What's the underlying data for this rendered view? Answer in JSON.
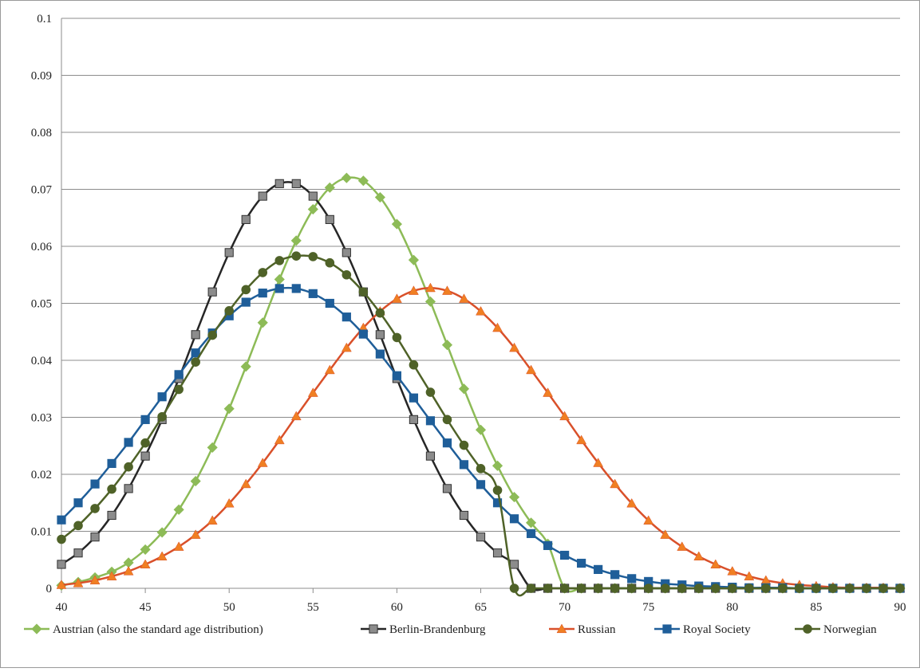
{
  "chart_data": {
    "type": "line",
    "title": "",
    "xlabel": "",
    "ylabel": "",
    "xlim": [
      40,
      90
    ],
    "ylim": [
      0,
      0.1
    ],
    "xticks": [
      "40",
      "45",
      "50",
      "55",
      "60",
      "65",
      "70",
      "75",
      "80",
      "85",
      "90"
    ],
    "yticks": [
      "0",
      "0.01",
      "0.02",
      "0.03",
      "0.04",
      "0.05",
      "0.06",
      "0.07",
      "0.08",
      "0.09",
      "0.1"
    ],
    "grid": "horizontal",
    "legend_position": "bottom",
    "x": [
      40,
      41,
      42,
      43,
      44,
      45,
      46,
      47,
      48,
      49,
      50,
      51,
      52,
      53,
      54,
      55,
      56,
      57,
      58,
      59,
      60,
      61,
      62,
      63,
      64,
      65,
      66,
      67,
      68,
      69,
      70,
      71,
      72,
      73,
      74,
      75,
      76,
      77,
      78,
      79,
      80,
      81,
      82,
      83,
      84,
      85,
      86,
      87,
      88,
      89,
      90
    ],
    "series": [
      {
        "name": "Austrian (also the standard age distribution)",
        "color": "#8DBB57",
        "marker": "diamond",
        "values": [
          0.0005,
          0.0011,
          0.0019,
          0.0029,
          0.0045,
          0.0068,
          0.0098,
          0.0138,
          0.0188,
          0.0247,
          0.0315,
          0.0389,
          0.0466,
          0.0542,
          0.061,
          0.0665,
          0.0703,
          0.072,
          0.0715,
          0.0686,
          0.0639,
          0.0576,
          0.0503,
          0.0427,
          0.035,
          0.0278,
          0.0215,
          0.016,
          0.0115,
          0.0078,
          0,
          0,
          0,
          0,
          0,
          0,
          0,
          0,
          0,
          0,
          0,
          0,
          0,
          0,
          0,
          0,
          0,
          0,
          0,
          0,
          0
        ]
      },
      {
        "name": "Berlin-Brandenburg",
        "color": "#262626",
        "marker_fill": "#8C8C8C",
        "marker": "square",
        "values": [
          0.0042,
          0.0062,
          0.009,
          0.0128,
          0.0175,
          0.0232,
          0.0296,
          0.0368,
          0.0445,
          0.052,
          0.0589,
          0.0647,
          0.0688,
          0.071,
          0.071,
          0.0688,
          0.0647,
          0.0589,
          0.052,
          0.0445,
          0.0368,
          0.0296,
          0.0232,
          0.0175,
          0.0128,
          0.009,
          0.0062,
          0.0042,
          0,
          0,
          0,
          0,
          0,
          0,
          0,
          0,
          0,
          0,
          0,
          0,
          0,
          0,
          0,
          0,
          0,
          0,
          0,
          0,
          0,
          0,
          0
        ]
      },
      {
        "name": "Russian",
        "color": "#D9502A",
        "marker_fill": "#F07F23",
        "marker": "triangle",
        "values": [
          0.0006,
          0.0009,
          0.0014,
          0.0021,
          0.003,
          0.0042,
          0.0056,
          0.0073,
          0.0094,
          0.0119,
          0.0149,
          0.0183,
          0.022,
          0.026,
          0.0302,
          0.0343,
          0.0383,
          0.0422,
          0.0457,
          0.0486,
          0.0508,
          0.0522,
          0.0527,
          0.0522,
          0.0508,
          0.0486,
          0.0457,
          0.0422,
          0.0383,
          0.0343,
          0.0302,
          0.026,
          0.022,
          0.0183,
          0.0149,
          0.0119,
          0.0094,
          0.0073,
          0.0056,
          0.0042,
          0.003,
          0.0021,
          0.0014,
          0.0009,
          0.0006,
          0.0004,
          0.0002,
          0.0001,
          0.0001,
          0.0001,
          0
        ]
      },
      {
        "name": "Royal Society",
        "color": "#1F5E99",
        "marker": "square",
        "values": [
          0.012,
          0.015,
          0.0183,
          0.0219,
          0.0256,
          0.0296,
          0.0336,
          0.0375,
          0.0413,
          0.0448,
          0.0478,
          0.0502,
          0.0518,
          0.0526,
          0.0526,
          0.0517,
          0.05,
          0.0476,
          0.0446,
          0.0411,
          0.0373,
          0.0334,
          0.0294,
          0.0255,
          0.0217,
          0.0182,
          0.015,
          0.0122,
          0.0096,
          0.0075,
          0.0058,
          0.0044,
          0.0033,
          0.0024,
          0.0017,
          0.0012,
          0.0008,
          0.0006,
          0.0004,
          0.0003,
          0.0002,
          0.0001,
          0.0001,
          0.0001,
          0,
          0,
          0,
          0,
          0,
          0,
          0
        ]
      },
      {
        "name": "Norwegian",
        "color": "#4F6228",
        "marker": "circle",
        "values": [
          0.0086,
          0.011,
          0.014,
          0.0174,
          0.0213,
          0.0255,
          0.0301,
          0.0349,
          0.0397,
          0.0444,
          0.0487,
          0.0524,
          0.0554,
          0.0575,
          0.0583,
          0.0582,
          0.0571,
          0.055,
          0.052,
          0.0483,
          0.044,
          0.0392,
          0.0344,
          0.0296,
          0.0251,
          0.021,
          0.0172,
          0,
          0,
          0,
          0,
          0,
          0,
          0,
          0,
          0,
          0,
          0,
          0,
          0,
          0,
          0,
          0,
          0,
          0,
          0,
          0,
          0,
          0,
          0,
          0
        ]
      }
    ]
  }
}
